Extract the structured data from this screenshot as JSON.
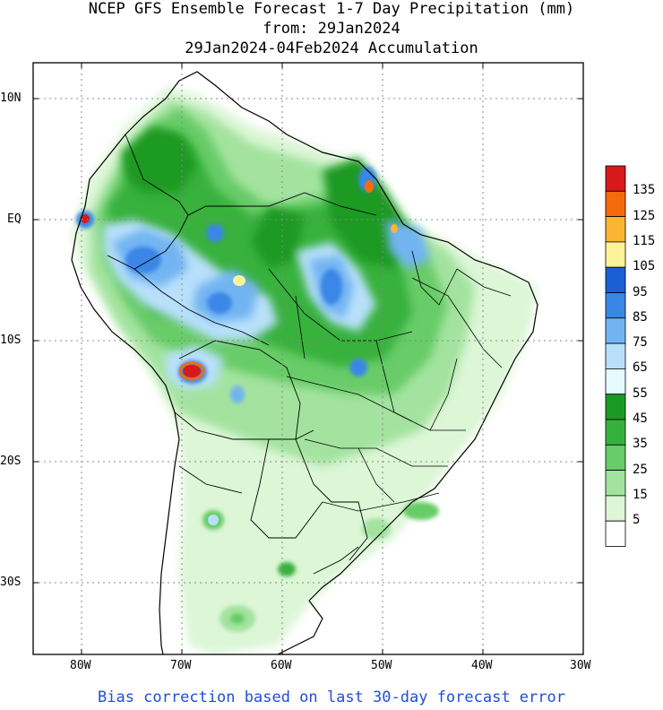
{
  "title": {
    "line1": "NCEP GFS Ensemble Forecast 1-7 Day Precipitation (mm)",
    "line2": "from: 29Jan2024",
    "line3": "29Jan2024-04Feb2024 Accumulation"
  },
  "lat_labels": [
    "10N",
    "EQ",
    "10S",
    "20S",
    "30S"
  ],
  "lon_labels": [
    "80W",
    "70W",
    "60W",
    "50W",
    "40W",
    "30W"
  ],
  "legend": {
    "labels": [
      "135",
      "125",
      "115",
      "105",
      "95",
      "85",
      "75",
      "65",
      "55",
      "45",
      "35",
      "25",
      "15",
      "5"
    ],
    "colors": [
      "#d7191c",
      "#f56b0b",
      "#fab532",
      "#fff29a",
      "#1a5fd6",
      "#3a86e6",
      "#72b4f2",
      "#b8e0fb",
      "#e6fbff",
      "#1a9a24",
      "#37b13d",
      "#68cc68",
      "#a3e39f",
      "#dcf6d6",
      "#ffffff"
    ]
  },
  "footer": "Bias correction based on last 30-day forecast error"
}
